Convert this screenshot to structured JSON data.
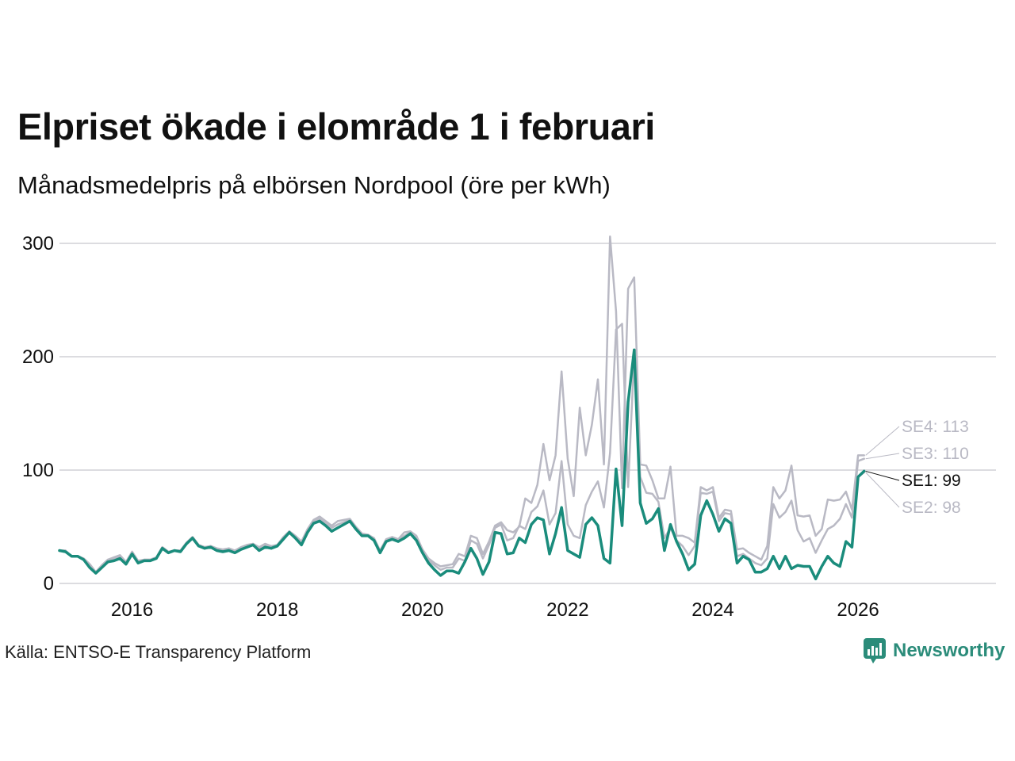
{
  "title": "Elpriset ökade i elområde 1 i februari",
  "subtitle": "Månadsmedelpris på elbörsen Nordpool (öre per kWh)",
  "source": "Källa: ENTSO-E Transparency Platform",
  "brand": "Newsworthy",
  "colors": {
    "accent": "#1a8c7c",
    "muted": "#b9b9c4",
    "grid": "#dcdce0",
    "text": "#111111",
    "brand": "#2b8c7a"
  },
  "chart_data": {
    "type": "line",
    "title": "Elpriset ökade i elområde 1 i februari",
    "subtitle": "Månadsmedelpris på elbörsen Nordpool (öre per kWh)",
    "xlabel": "",
    "ylabel": "",
    "x_start": "2015-01",
    "xlim": [
      2015.0,
      2027.9
    ],
    "ylim": [
      0,
      300
    ],
    "yticks": [
      "0",
      "100",
      "200",
      "300"
    ],
    "xticks": [
      "2016",
      "2018",
      "2020",
      "2022",
      "2024",
      "2026"
    ],
    "grid": true,
    "series": [
      {
        "name": "SE1",
        "label": "SE1: 99",
        "highlight": true,
        "values": [
          29,
          28,
          24,
          24,
          21,
          14,
          9,
          14,
          19,
          20,
          22,
          17,
          26,
          18,
          20,
          20,
          22,
          31,
          27,
          29,
          28,
          35,
          40,
          33,
          31,
          32,
          29,
          28,
          29,
          27,
          30,
          32,
          34,
          29,
          32,
          31,
          33,
          39,
          45,
          40,
          34,
          45,
          53,
          55,
          51,
          46,
          49,
          52,
          55,
          48,
          42,
          42,
          38,
          27,
          37,
          39,
          37,
          40,
          44,
          38,
          27,
          18,
          12,
          7,
          11,
          11,
          9,
          19,
          31,
          22,
          8,
          19,
          45,
          44,
          26,
          27,
          40,
          36,
          52,
          58,
          56,
          26,
          44,
          67,
          29,
          26,
          23,
          52,
          58,
          51,
          22,
          18,
          101,
          51,
          160,
          206,
          71,
          53,
          57,
          66,
          29,
          52,
          37,
          26,
          12,
          17,
          60,
          73,
          61,
          46,
          57,
          53,
          18,
          24,
          21,
          10,
          10,
          13,
          24,
          13,
          24,
          13,
          16,
          15,
          15,
          4,
          15,
          24,
          18,
          15,
          37,
          32,
          94,
          99
        ]
      },
      {
        "name": "SE2",
        "label": "SE2: 98",
        "highlight": false,
        "values": [
          29,
          28,
          24,
          24,
          21,
          14,
          9,
          14,
          19,
          20,
          22,
          17,
          26,
          18,
          20,
          20,
          22,
          31,
          27,
          29,
          28,
          35,
          40,
          33,
          31,
          32,
          29,
          28,
          29,
          27,
          30,
          32,
          34,
          29,
          32,
          31,
          33,
          39,
          45,
          40,
          34,
          45,
          53,
          55,
          51,
          46,
          49,
          52,
          55,
          48,
          42,
          42,
          38,
          27,
          37,
          39,
          37,
          40,
          44,
          38,
          27,
          18,
          12,
          7,
          11,
          11,
          9,
          19,
          31,
          22,
          8,
          19,
          45,
          44,
          26,
          27,
          40,
          36,
          52,
          58,
          56,
          26,
          44,
          67,
          29,
          26,
          23,
          52,
          58,
          51,
          22,
          18,
          101,
          51,
          160,
          206,
          71,
          53,
          57,
          66,
          29,
          52,
          37,
          26,
          12,
          17,
          60,
          73,
          61,
          46,
          57,
          53,
          18,
          24,
          21,
          10,
          10,
          13,
          24,
          13,
          24,
          13,
          16,
          15,
          15,
          4,
          15,
          24,
          18,
          15,
          37,
          32,
          94,
          98
        ]
      },
      {
        "name": "SE3",
        "label": "SE3: 110",
        "highlight": false,
        "values": [
          29,
          29,
          24,
          24,
          22,
          17,
          10,
          16,
          21,
          22,
          24,
          18,
          28,
          19,
          21,
          21,
          23,
          32,
          28,
          29,
          29,
          36,
          41,
          34,
          32,
          33,
          30,
          29,
          30,
          28,
          31,
          33,
          35,
          31,
          34,
          32,
          34,
          40,
          46,
          41,
          36,
          47,
          55,
          57,
          53,
          49,
          52,
          54,
          56,
          49,
          43,
          42,
          39,
          28,
          38,
          40,
          38,
          42,
          45,
          40,
          28,
          20,
          16,
          12,
          14,
          14,
          22,
          20,
          38,
          35,
          22,
          34,
          49,
          52,
          38,
          40,
          51,
          48,
          63,
          68,
          82,
          52,
          62,
          108,
          52,
          42,
          40,
          69,
          81,
          90,
          67,
          115,
          224,
          229,
          85,
          201,
          94,
          80,
          79,
          72,
          40,
          49,
          38,
          33,
          25,
          33,
          80,
          79,
          81,
          55,
          62,
          61,
          24,
          26,
          22,
          18,
          16,
          22,
          70,
          58,
          63,
          73,
          47,
          37,
          40,
          27,
          38,
          48,
          51,
          57,
          70,
          58,
          108,
          110
        ]
      },
      {
        "name": "SE4",
        "label": "SE4: 113",
        "highlight": false,
        "values": [
          29,
          29,
          24,
          24,
          22,
          17,
          10,
          16,
          21,
          23,
          25,
          19,
          28,
          20,
          21,
          21,
          23,
          32,
          28,
          29,
          29,
          36,
          41,
          34,
          32,
          33,
          31,
          30,
          31,
          29,
          32,
          34,
          35,
          32,
          35,
          33,
          34,
          41,
          46,
          42,
          37,
          48,
          56,
          59,
          55,
          51,
          55,
          56,
          57,
          50,
          44,
          43,
          40,
          29,
          39,
          41,
          39,
          45,
          46,
          42,
          30,
          22,
          18,
          15,
          16,
          17,
          26,
          24,
          42,
          40,
          26,
          37,
          51,
          54,
          47,
          45,
          50,
          75,
          71,
          87,
          123,
          91,
          113,
          187,
          110,
          77,
          155,
          113,
          140,
          180,
          105,
          306,
          240,
          84,
          260,
          270,
          105,
          104,
          91,
          75,
          75,
          103,
          42,
          42,
          40,
          36,
          85,
          82,
          85,
          58,
          65,
          64,
          30,
          31,
          27,
          24,
          21,
          33,
          85,
          75,
          82,
          104,
          60,
          59,
          60,
          42,
          48,
          74,
          73,
          74,
          81,
          65,
          113,
          113
        ]
      }
    ]
  }
}
